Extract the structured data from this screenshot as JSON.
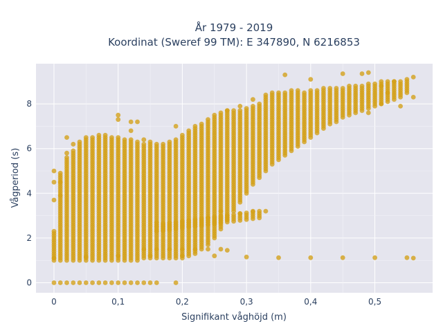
{
  "chart_data": {
    "type": "scatter",
    "title_line1": "År 1979 - 2019",
    "title_line2": "Koordinat (Sweref 99 TM): E 347890, N 6216853",
    "xlabel": "Signifikant våghöjd (m)",
    "ylabel": "Vågperiod (s)",
    "xlim": [
      -0.028,
      0.59
    ],
    "ylim": [
      -0.45,
      9.8
    ],
    "x_ticks": [
      {
        "value": 0,
        "label": "0"
      },
      {
        "value": 0.1,
        "label": "0,1"
      },
      {
        "value": 0.2,
        "label": "0,2"
      },
      {
        "value": 0.3,
        "label": "0,3"
      },
      {
        "value": 0.4,
        "label": "0,4"
      },
      {
        "value": 0.5,
        "label": "0,5"
      }
    ],
    "y_ticks": [
      {
        "value": 0,
        "label": "0"
      },
      {
        "value": 2,
        "label": "2"
      },
      {
        "value": 4,
        "label": "4"
      },
      {
        "value": 6,
        "label": "6"
      },
      {
        "value": 8,
        "label": "8"
      }
    ],
    "grid": true,
    "marker_color": "#d4a017",
    "plot_bg": "#e5e5ee",
    "x_step": 0.01,
    "columns": [
      [
        0.0,
        1.0,
        2.3
      ],
      [
        0.01,
        1.0,
        4.9
      ],
      [
        0.02,
        1.0,
        5.6
      ],
      [
        0.03,
        1.0,
        5.9
      ],
      [
        0.04,
        1.0,
        6.3
      ],
      [
        0.05,
        1.0,
        6.5
      ],
      [
        0.06,
        1.0,
        6.5
      ],
      [
        0.07,
        1.0,
        6.6
      ],
      [
        0.08,
        1.0,
        6.6
      ],
      [
        0.09,
        1.0,
        6.5
      ],
      [
        0.1,
        1.0,
        6.5
      ],
      [
        0.11,
        1.0,
        6.4
      ],
      [
        0.12,
        1.0,
        6.4
      ],
      [
        0.13,
        1.0,
        6.3
      ],
      [
        0.14,
        1.1,
        6.2
      ],
      [
        0.15,
        1.1,
        6.2
      ],
      [
        0.16,
        1.1,
        6.2
      ],
      [
        0.17,
        1.1,
        6.2
      ],
      [
        0.18,
        1.1,
        6.3
      ],
      [
        0.19,
        1.1,
        6.4
      ],
      [
        0.2,
        1.1,
        6.6
      ],
      [
        0.21,
        1.2,
        6.8
      ],
      [
        0.22,
        1.3,
        7.0
      ],
      [
        0.23,
        1.5,
        7.1
      ],
      [
        0.24,
        1.7,
        7.3
      ],
      [
        0.25,
        2.0,
        7.5
      ],
      [
        0.26,
        2.4,
        7.6
      ],
      [
        0.27,
        2.8,
        7.7
      ],
      [
        0.28,
        3.2,
        7.7
      ],
      [
        0.29,
        3.6,
        7.7
      ],
      [
        0.3,
        4.0,
        7.8
      ],
      [
        0.31,
        4.4,
        7.9
      ],
      [
        0.32,
        4.7,
        8.0
      ],
      [
        0.33,
        5.0,
        8.4
      ],
      [
        0.34,
        5.3,
        8.5
      ],
      [
        0.35,
        5.5,
        8.5
      ],
      [
        0.36,
        5.7,
        8.5
      ],
      [
        0.37,
        5.9,
        8.6
      ],
      [
        0.38,
        6.1,
        8.6
      ],
      [
        0.39,
        6.3,
        8.5
      ],
      [
        0.4,
        6.5,
        8.6
      ],
      [
        0.41,
        6.7,
        8.6
      ],
      [
        0.42,
        6.9,
        8.7
      ],
      [
        0.43,
        7.1,
        8.7
      ],
      [
        0.44,
        7.2,
        8.7
      ],
      [
        0.45,
        7.4,
        8.7
      ],
      [
        0.46,
        7.5,
        8.8
      ],
      [
        0.47,
        7.6,
        8.8
      ],
      [
        0.48,
        7.7,
        8.8
      ],
      [
        0.49,
        7.8,
        8.9
      ],
      [
        0.5,
        7.9,
        8.9
      ],
      [
        0.51,
        8.0,
        9.0
      ],
      [
        0.52,
        8.1,
        9.0
      ],
      [
        0.53,
        8.2,
        9.0
      ],
      [
        0.54,
        8.3,
        9.0
      ],
      [
        0.55,
        8.5,
        9.1
      ]
    ],
    "lower_band": {
      "x_from": 0.16,
      "x_to": 0.32,
      "y_from_start": 2.3,
      "y_from_end": 2.9,
      "y_to_start": 2.7,
      "y_to_end": 3.2
    },
    "zero_points_x": [
      0.0,
      0.01,
      0.02,
      0.03,
      0.04,
      0.05,
      0.06,
      0.07,
      0.08,
      0.09,
      0.1,
      0.11,
      0.12,
      0.13,
      0.14,
      0.15,
      0.16,
      0.19
    ],
    "flat_points": [
      [
        0.0,
        1.1
      ],
      [
        0.05,
        1.15
      ],
      [
        0.1,
        1.2
      ],
      [
        0.15,
        1.2
      ],
      [
        0.2,
        1.2
      ],
      [
        0.25,
        1.2
      ],
      [
        0.3,
        1.15
      ],
      [
        0.35,
        1.12
      ],
      [
        0.4,
        1.12
      ],
      [
        0.45,
        1.12
      ],
      [
        0.5,
        1.12
      ],
      [
        0.55,
        1.12
      ],
      [
        0.56,
        1.1
      ],
      [
        0.14,
        1.5
      ],
      [
        0.16,
        1.5
      ],
      [
        0.18,
        1.5
      ],
      [
        0.2,
        1.5
      ],
      [
        0.22,
        1.5
      ],
      [
        0.24,
        1.5
      ],
      [
        0.26,
        1.5
      ],
      [
        0.27,
        1.45
      ]
    ],
    "outliers": [
      [
        0.0,
        5.0
      ],
      [
        0.0,
        4.5
      ],
      [
        0.0,
        3.7
      ],
      [
        0.01,
        4.5
      ],
      [
        0.01,
        3.9
      ],
      [
        0.02,
        6.5
      ],
      [
        0.02,
        5.8
      ],
      [
        0.03,
        6.2
      ],
      [
        0.1,
        7.5
      ],
      [
        0.1,
        7.3
      ],
      [
        0.12,
        7.2
      ],
      [
        0.12,
        6.8
      ],
      [
        0.13,
        7.2
      ],
      [
        0.14,
        6.4
      ],
      [
        0.15,
        6.3
      ],
      [
        0.19,
        7.0
      ],
      [
        0.27,
        7.7
      ],
      [
        0.29,
        7.9
      ],
      [
        0.31,
        8.2
      ],
      [
        0.36,
        9.3
      ],
      [
        0.4,
        9.1
      ],
      [
        0.45,
        9.35
      ],
      [
        0.48,
        9.35
      ],
      [
        0.49,
        9.4
      ],
      [
        0.51,
        8.8
      ],
      [
        0.53,
        9.0
      ],
      [
        0.56,
        9.2
      ],
      [
        0.56,
        8.3
      ],
      [
        0.52,
        8.5
      ],
      [
        0.51,
        8.0
      ],
      [
        0.49,
        7.6
      ],
      [
        0.54,
        7.9
      ],
      [
        0.33,
        3.2
      ],
      [
        0.31,
        3.2
      ],
      [
        0.29,
        3.1
      ],
      [
        0.26,
        3.2
      ],
      [
        0.24,
        2.9
      ]
    ]
  }
}
